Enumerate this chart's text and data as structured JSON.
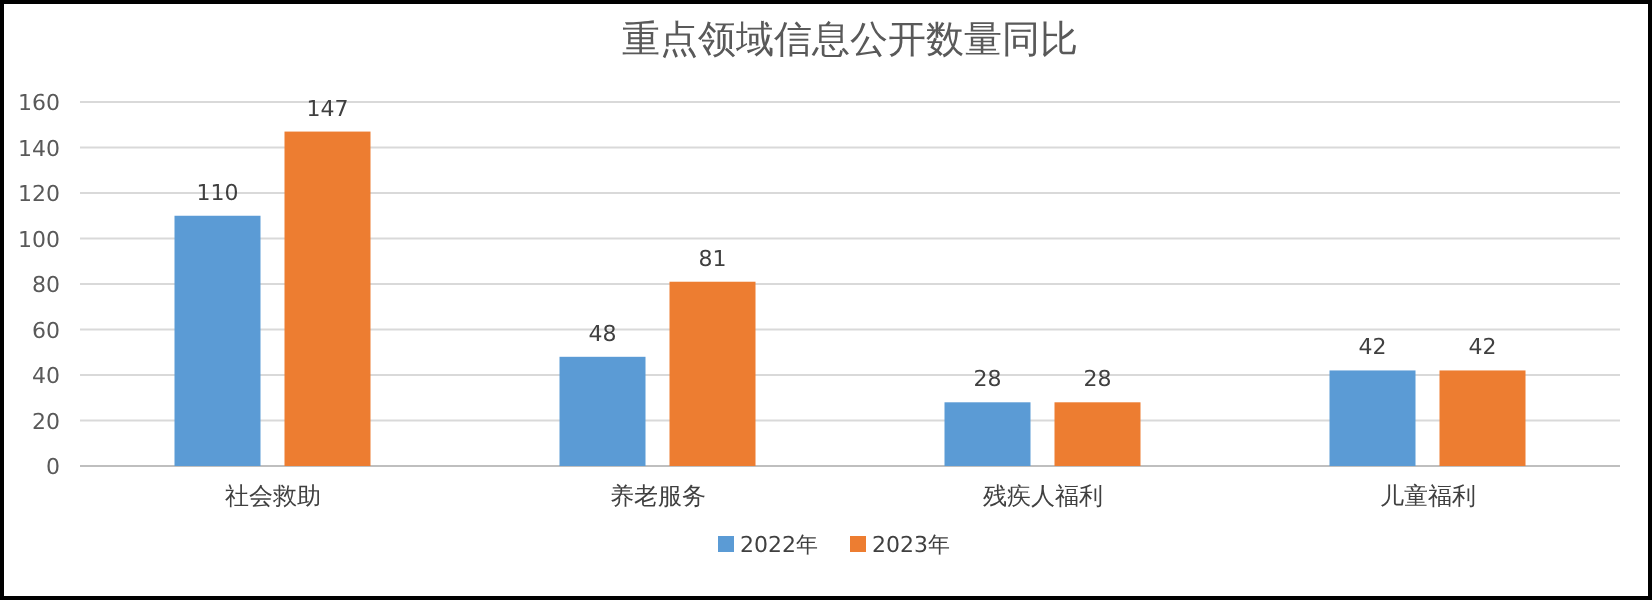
{
  "chart_data": {
    "type": "bar",
    "title": "重点领域信息公开数量同比",
    "categories": [
      "社会救助",
      "养老服务",
      "残疾人福利",
      "儿童福利"
    ],
    "series": [
      {
        "name": "2022年",
        "color": "#5b9bd5",
        "values": [
          110,
          48,
          28,
          42
        ]
      },
      {
        "name": "2023年",
        "color": "#ed7d31",
        "values": [
          147,
          81,
          28,
          42
        ]
      }
    ],
    "ylim": [
      0,
      160
    ],
    "yticks": [
      0,
      20,
      40,
      60,
      80,
      100,
      120,
      140,
      160
    ],
    "grid": "y",
    "legend": "bottom",
    "data_labels": true
  }
}
